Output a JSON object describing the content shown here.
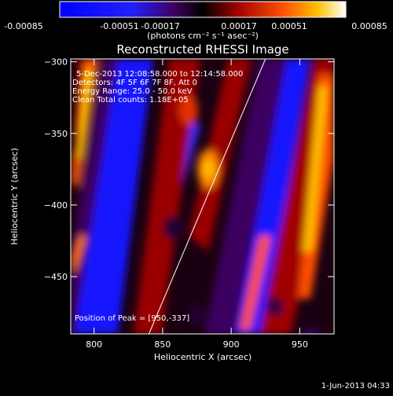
{
  "colorbar": {
    "ticks": [
      "-0.00085",
      "-0.00051",
      "-0.00017",
      "0.00017",
      "0.00051",
      "0.00085"
    ],
    "unit_label": "(photons cm⁻² s⁻¹ asec⁻²)"
  },
  "chart_data": {
    "type": "heatmap",
    "title": "Reconstructed RHESSI Image",
    "xlabel": "Heliocentric X (arcsec)",
    "ylabel": "Heliocentric Y (arcsec)",
    "xlim": [
      783,
      975
    ],
    "ylim": [
      -490,
      -298
    ],
    "x_ticks": [
      800,
      850,
      900,
      950
    ],
    "y_ticks": [
      -300,
      -350,
      -400,
      -450
    ],
    "x_tick_labels": [
      "800",
      "850",
      "900",
      "950"
    ],
    "y_tick_labels": [
      "−300",
      "−350",
      "−400",
      "−450"
    ],
    "value_range": [
      -0.00085,
      0.00085
    ],
    "overlay_line": {
      "x": [
        840,
        925
      ],
      "y": [
        -490,
        -298
      ]
    }
  },
  "annotations": {
    "line1": "5-Dec-2013 12:08:58.000 to 12:14:58.000",
    "line2": "Detectors: 4F 5F 6F 7F 8F, Att 0",
    "line3": "Energy Range: 25.0 - 50.0 keV",
    "line4": "Clean   Total counts: 1.18E+05",
    "peak": "Position of Peak = [950,-337]"
  },
  "footer": {
    "date": "1-Jun-2013 04:33"
  }
}
